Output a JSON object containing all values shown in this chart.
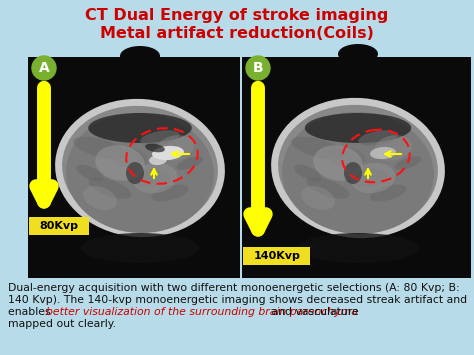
{
  "title_line1": "CT Dual Energy of stroke imaging",
  "title_line2": "Metal artifact reduction(Coils)",
  "title_color": "#cc0000",
  "bg_color_top": "#b8dce8",
  "bg_color_bottom": "#c8e4f0",
  "label_A": "A",
  "label_B": "B",
  "label_80kvp": "80Kvp",
  "label_140kvp": "140Kvp",
  "caption_line1": "Dual-energy acquisition with two different monoenergetic selections (A: 80 Kvp; B:",
  "caption_line2": "140 Kvp). The 140-kvp monoenergetic imaging shows decreased streak artifact and",
  "caption_line3a": "enables ",
  "caption_italic": "better visualization of the surrounding brain parenchyma",
  "caption_line3b": " and vasculature",
  "caption_line4": "mapped out clearly.",
  "caption_color": "#111111",
  "caption_italic_color": "#cc0000",
  "caption_fontsize": 7.8,
  "title_fontsize": 11.5,
  "panel_bg": "#0a0a0a",
  "roi_color": "#ff1111",
  "arrow_color": "#ffff00",
  "label_circle_color": "#7ab030",
  "kvp_box_color": "#f0de20"
}
